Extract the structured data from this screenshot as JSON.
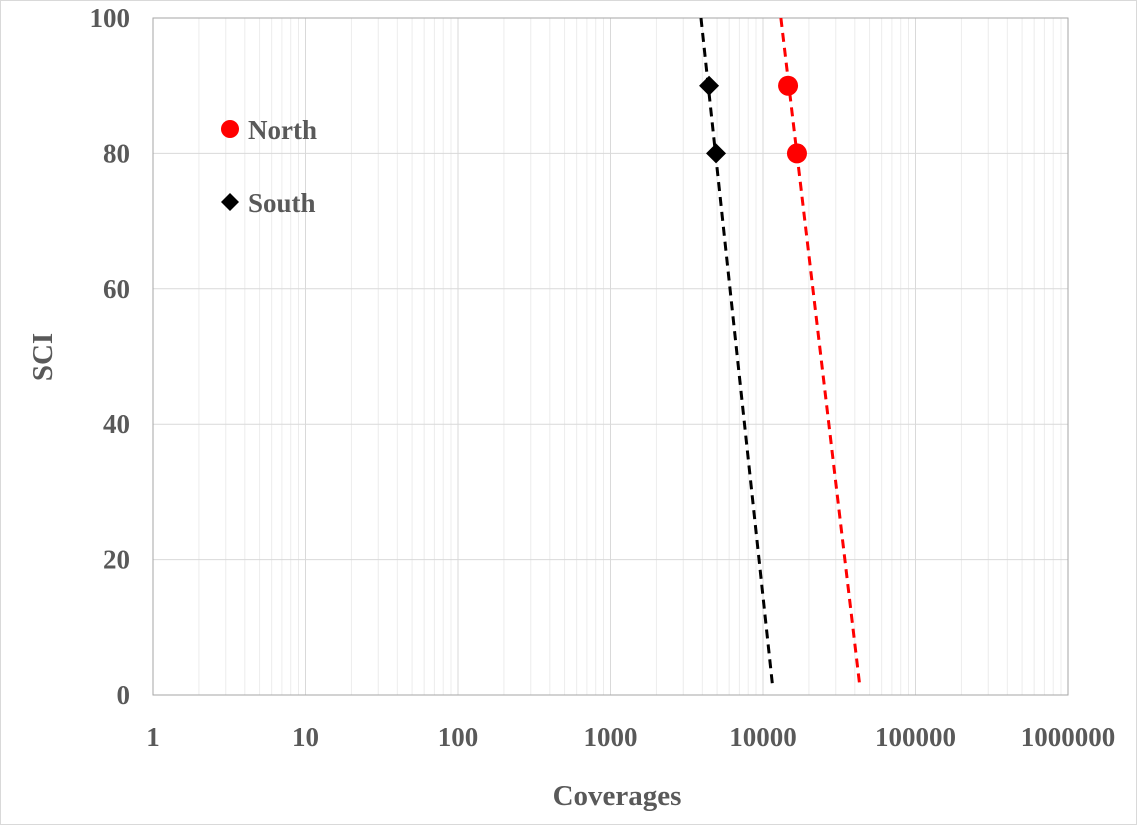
{
  "chart_data": {
    "type": "scatter",
    "title": "",
    "xlabel": "Coverages",
    "ylabel": "SCI",
    "xscale": "log",
    "xlim": [
      1,
      1000000
    ],
    "ylim": [
      0,
      100
    ],
    "xticks": [
      "1",
      "10",
      "100",
      "1000",
      "10000",
      "100000",
      "1000000"
    ],
    "yticks": [
      "0",
      "20",
      "40",
      "60",
      "80",
      "100"
    ],
    "grid": true,
    "legend_position": "top-left",
    "series": [
      {
        "name": "North",
        "color": "#ff0000",
        "marker": "circle",
        "x": [
          14600,
          16700
        ],
        "y": [
          90,
          80
        ],
        "trendline": {
          "style": "dashed",
          "x": [
            13100,
            43300
          ],
          "y": [
            100,
            1
          ]
        }
      },
      {
        "name": "South",
        "color": "#000000",
        "marker": "diamond",
        "x": [
          4430,
          4920
        ],
        "y": [
          90,
          80
        ],
        "trendline": {
          "style": "dashed",
          "x": [
            3920,
            11600
          ],
          "y": [
            100,
            1
          ]
        }
      }
    ]
  }
}
